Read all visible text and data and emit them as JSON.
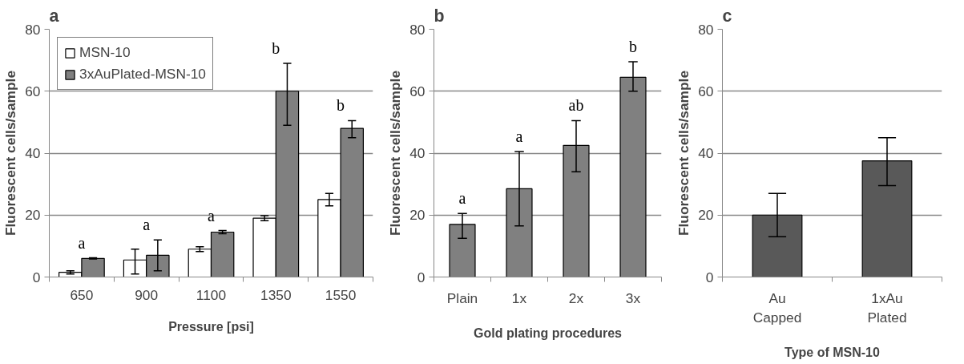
{
  "chart_data": [
    {
      "type": "bar",
      "title": "a",
      "xlabel": "Pressure [psi]",
      "ylabel": "Fluorescent cells/sample",
      "categories": [
        "650",
        "900",
        "1100",
        "1350",
        "1550"
      ],
      "ylim": [
        0,
        80
      ],
      "yticks": [
        0,
        20,
        40,
        60,
        80
      ],
      "grid": "y",
      "legend": "top left",
      "series": [
        {
          "name": "MSN-10",
          "color": "#ffffff",
          "values": [
            1.5,
            5.5,
            9,
            19,
            25
          ],
          "errors": [
            [
              1,
              2
            ],
            [
              1,
              9
            ],
            [
              8.2,
              9.8
            ],
            [
              18.2,
              19.8
            ],
            [
              23,
              27
            ]
          ]
        },
        {
          "name": "3xAuPlated-MSN-10",
          "color": "#808080",
          "values": [
            6,
            7,
            14.5,
            60,
            48
          ],
          "errors": [
            [
              5.8,
              6.2
            ],
            [
              2,
              12
            ],
            [
              14,
              15
            ],
            [
              49,
              69
            ],
            [
              45,
              50.5
            ]
          ]
        }
      ],
      "annotations": [
        "a",
        "a",
        "a",
        "b",
        "b"
      ]
    },
    {
      "type": "bar",
      "title": "b",
      "xlabel": "Gold plating procedures",
      "ylabel": "Fluorescent cells/sample",
      "categories": [
        "Plain",
        "1x",
        "2x",
        "3x"
      ],
      "ylim": [
        0,
        80
      ],
      "yticks": [
        0,
        20,
        40,
        60,
        80
      ],
      "grid": "y",
      "series": [
        {
          "color": "#808080",
          "values": [
            17,
            28.5,
            42.5,
            64.5
          ],
          "errors": [
            [
              12.5,
              20.5
            ],
            [
              16.5,
              40.5
            ],
            [
              34,
              50.5
            ],
            [
              60,
              69.5
            ]
          ]
        }
      ],
      "annotations": [
        "a",
        "a",
        "ab",
        "b"
      ]
    },
    {
      "type": "bar",
      "title": "c",
      "xlabel": "Type of MSN-10",
      "ylabel": "Fluorescent cells/sample",
      "categories": [
        "Au\nCapped",
        "1xAu\nPlated"
      ],
      "ylim": [
        0,
        80
      ],
      "yticks": [
        0,
        20,
        40,
        60,
        80
      ],
      "grid": "y",
      "series": [
        {
          "color": "#595959",
          "values": [
            20,
            37.5
          ],
          "errors": [
            [
              13,
              27
            ],
            [
              29.5,
              45
            ]
          ]
        }
      ]
    }
  ]
}
